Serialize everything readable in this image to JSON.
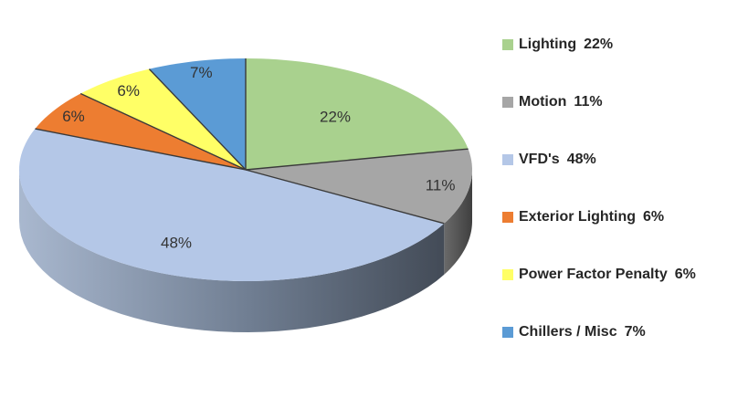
{
  "chart_data": {
    "type": "pie",
    "style": "3d",
    "legend_position": "right",
    "slices": [
      {
        "label": "Lighting",
        "value": 22,
        "display": "22%",
        "color": "#a9d18e"
      },
      {
        "label": "Motion",
        "value": 11,
        "display": "11%",
        "color": "#a6a6a6"
      },
      {
        "label": "VFD's",
        "value": 48,
        "display": "48%",
        "color": "#b4c7e7"
      },
      {
        "label": "Exterior Lighting",
        "value": 6,
        "display": "6%",
        "color": "#ed7d31"
      },
      {
        "label": "Power Factor Penalty",
        "value": 6,
        "display": "6%",
        "color": "#ffff66"
      },
      {
        "label": "Chillers / Misc",
        "value": 7,
        "display": "7%",
        "color": "#5b9bd5"
      }
    ]
  }
}
